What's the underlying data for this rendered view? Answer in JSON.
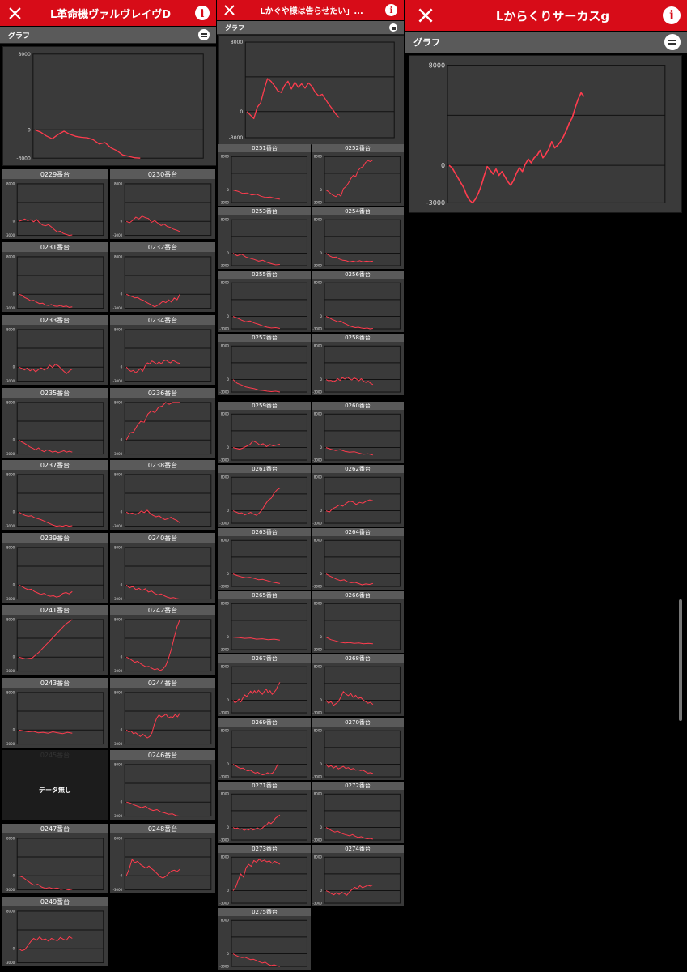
{
  "colors": {
    "header": "#d70c18",
    "line": "#ff3c4e",
    "card": "#3a3a3a",
    "card_head": "#5a5a5a"
  },
  "icons": {
    "close": "close-icon",
    "info": "info-icon",
    "collapse": "collapse-icon"
  },
  "y_max_label": "8000",
  "y_zero_label": "0",
  "y_min_label": "-3000",
  "nodata_label": "データ無し",
  "panels": [
    {
      "title": "L革命機ヴァルヴレイヴD",
      "graph_label": "グラフ",
      "main_series": [
        0,
        -250,
        -650,
        -950,
        -500,
        -150,
        -480,
        -690,
        -800,
        -850,
        -1050,
        -1500,
        -1350,
        -1900,
        -2200,
        -2650,
        -2800,
        -2950,
        -3100
      ],
      "cards": [
        {
          "label": "0229番台",
          "series": [
            0,
            200,
            500,
            150,
            350,
            -100,
            400,
            -300,
            -800,
            -950,
            -700,
            -1200,
            -1800,
            -2300,
            -2100,
            -2600,
            -2800,
            -3000,
            -2900
          ]
        },
        {
          "label": "0230番台",
          "series": [
            0,
            -300,
            200,
            900,
            500,
            1100,
            800,
            600,
            -200,
            150,
            -400,
            -900,
            -600,
            -1100,
            -1300,
            -1700,
            -1900,
            -2200
          ]
        },
        {
          "label": "0231番台",
          "series": [
            0,
            -200,
            -700,
            -1000,
            -1400,
            -1300,
            -1700,
            -2000,
            -1900,
            -2300,
            -2400,
            -2200,
            -2500,
            -2600,
            -2400,
            -2650,
            -2500,
            -2800,
            -2700
          ]
        },
        {
          "label": "0232番台",
          "series": [
            0,
            -300,
            -500,
            -800,
            -700,
            -1100,
            -1300,
            -1700,
            -2000,
            -2300,
            -2700,
            -2400,
            -2000,
            -1500,
            -1800,
            -1200,
            -1700,
            -800,
            -1200,
            0
          ]
        },
        {
          "label": "0233番台",
          "series": [
            0,
            -250,
            -600,
            -200,
            -800,
            -400,
            -1000,
            -500,
            -150,
            -600,
            -300,
            400,
            -100,
            600,
            300,
            -300,
            -900,
            -1400,
            -800,
            -400
          ]
        },
        {
          "label": "0234番台",
          "series": [
            0,
            -600,
            -900,
            -700,
            -1200,
            -800,
            -300,
            -900,
            200,
            900,
            700,
            1300,
            1000,
            600,
            1100,
            700,
            1300,
            1500,
            1100,
            900,
            1400,
            1200,
            900,
            800
          ]
        },
        {
          "label": "0235番台",
          "series": [
            0,
            -400,
            -700,
            -1100,
            -1500,
            -1800,
            -2100,
            -1700,
            -2200,
            -2500,
            -2100,
            -2300,
            -2600,
            -2400,
            -2700,
            -2500,
            -2300,
            -2600,
            -2400,
            -2600
          ]
        },
        {
          "label": "0236番台",
          "series": [
            0,
            1500,
            1700,
            3000,
            4000,
            3800,
            5500,
            6200,
            5800,
            7000,
            7200,
            8000,
            7600,
            8200,
            8000,
            8000
          ]
        },
        {
          "label": "0237番台",
          "series": [
            0,
            -400,
            -700,
            -900,
            -800,
            -1200,
            -1400,
            -1600,
            -1900,
            -2200,
            -2500,
            -2800,
            -3000,
            -2900,
            -3000,
            -2800,
            -3000,
            -2900
          ]
        },
        {
          "label": "0238番台",
          "series": [
            0,
            -400,
            -200,
            -500,
            -300,
            200,
            -100,
            400,
            -300,
            -700,
            -1000,
            -800,
            -1300,
            -1600,
            -1400,
            -1100,
            -1500,
            -1800,
            -2300
          ]
        },
        {
          "label": "0239番台",
          "series": [
            0,
            -300,
            -700,
            -1000,
            -900,
            -1400,
            -1700,
            -2000,
            -1800,
            -2200,
            -2400,
            -2300,
            -2600,
            -2400,
            -1800,
            -1600,
            -1900,
            -1400
          ]
        },
        {
          "label": "0240番台",
          "series": [
            0,
            -600,
            -300,
            -1000,
            -700,
            -1200,
            -800,
            -1500,
            -1300,
            -1800,
            -2100,
            -1900,
            -2300,
            -2600,
            -2800,
            -2700,
            -2900,
            -3000
          ]
        },
        {
          "label": "0241番台",
          "series": [
            0,
            -400,
            -200,
            1000,
            2500,
            4000,
            5500,
            7000,
            8000
          ]
        },
        {
          "label": "0242番台",
          "series": [
            0,
            -300,
            -700,
            -1100,
            -900,
            -1400,
            -1800,
            -2100,
            -2000,
            -2400,
            -2700,
            -2500,
            -2900,
            -2600,
            -1800,
            -200,
            1800,
            4200,
            6500,
            8000
          ]
        },
        {
          "label": "0243番台",
          "series": [
            0,
            -200,
            -400,
            -300,
            -600,
            -500,
            -700,
            -400,
            -600,
            -800,
            -500,
            -700
          ]
        },
        {
          "label": "0244番台",
          "series": [
            0,
            -400,
            -200,
            -800,
            -600,
            -1000,
            -1400,
            -900,
            -1300,
            -1700,
            -1400,
            -600,
            1200,
            2500,
            3200,
            2800,
            3000,
            3400,
            2600,
            2800,
            2700,
            3300,
            2800,
            3600
          ]
        },
        {
          "label": "0245番台",
          "series": [],
          "nodata": true
        },
        {
          "label": "0246番台",
          "series": [
            0,
            -200,
            -600,
            -900,
            -1200,
            -900,
            -1500,
            -1800,
            -1600,
            -2100,
            -2300,
            -2600,
            -2500,
            -2900,
            -3000
          ]
        },
        {
          "label": "0247番台",
          "series": [
            0,
            -300,
            -900,
            -1500,
            -2000,
            -1800,
            -2400,
            -2700,
            -2500,
            -2800,
            -2600,
            -2900,
            -2800,
            -3000,
            -2850
          ]
        },
        {
          "label": "0248番台",
          "series": [
            0,
            1500,
            3500,
            2800,
            3100,
            2400,
            2000,
            1600,
            2100,
            1500,
            1000,
            400,
            -200,
            -500,
            -100,
            500,
            1000,
            1200,
            900,
            1400
          ]
        },
        {
          "label": "0249番台",
          "series": [
            0,
            -400,
            -200,
            600,
            1500,
            2200,
            1800,
            2500,
            1900,
            2100,
            1600,
            2200,
            1900,
            1700,
            2400,
            2000,
            1800,
            2600,
            2200
          ]
        }
      ]
    },
    {
      "title": "Lかぐや様は告らせたい」...",
      "graph_label": "グラフ",
      "main_series": [
        0,
        -400,
        -800,
        500,
        1000,
        2500,
        3800,
        3500,
        3000,
        2400,
        2200,
        3000,
        3500,
        2600,
        3400,
        2800,
        3200,
        2700,
        3300,
        2900,
        2200,
        1800,
        2000,
        1400,
        800,
        300,
        -300,
        -700
      ],
      "cards": [
        {
          "label": "0251番台",
          "series": [
            0,
            -300,
            -800,
            -700,
            -1200,
            -1000,
            -1500,
            -1800,
            -1700,
            -2000,
            -2200
          ]
        },
        {
          "label": "0252番台",
          "series": [
            0,
            -400,
            -900,
            -1300,
            -1600,
            -1000,
            -1500,
            300,
            800,
            1600,
            2700,
            3500,
            3200,
            4700,
            5300,
            5600,
            6600,
            7000,
            6800,
            7200
          ]
        },
        {
          "label": "0253番台",
          "series": [
            0,
            -600,
            -200,
            -900,
            -1200,
            -1500,
            -1900,
            -1700,
            -2200,
            -2500,
            -2800,
            -2700
          ]
        },
        {
          "label": "0254番台",
          "series": [
            0,
            -600,
            -1000,
            -900,
            -1400,
            -1700,
            -1800,
            -2100,
            -1900,
            -2100,
            -1800,
            -2100,
            -1900,
            -2000,
            -1900
          ]
        },
        {
          "label": "0255番台",
          "series": [
            0,
            -400,
            -900,
            -1300,
            -1100,
            -1600,
            -1900,
            -2300,
            -2600,
            -2800,
            -2700,
            -2900
          ]
        },
        {
          "label": "0256番台",
          "series": [
            0,
            -300,
            -700,
            -1000,
            -1300,
            -1100,
            -1600,
            -1900,
            -2300,
            -2500,
            -2700,
            -2600,
            -2800,
            -2900,
            -2800,
            -3000,
            -2900
          ]
        },
        {
          "label": "0257番台",
          "series": [
            0,
            -900,
            -1300,
            -1800,
            -2000,
            -2200,
            -2500,
            -2600,
            -2800,
            -2900,
            -2800,
            -3000
          ]
        },
        {
          "label": "0258番台",
          "series": [
            0,
            -300,
            -200,
            -500,
            -300,
            200,
            -200,
            500,
            100,
            600,
            200,
            -100,
            400,
            100,
            -300,
            200,
            -400,
            -700,
            -400,
            -900,
            -1200
          ]
        },
        {
          "label": "0259番台",
          "series": [
            0,
            -200,
            -400,
            -100,
            300,
            700,
            1600,
            1200,
            600,
            900,
            200,
            700,
            400,
            600,
            800
          ]
        },
        {
          "label": "0260番台",
          "series": [
            0,
            -400,
            -700,
            -500,
            -900,
            -1100,
            -1000,
            -1300,
            -1600,
            -1500,
            -1800
          ]
        },
        {
          "label": "0261番台",
          "series": [
            0,
            -300,
            -600,
            -500,
            -1000,
            -700,
            -400,
            -800,
            -1100,
            -500,
            300,
            1500,
            2500,
            3000,
            4200,
            5000,
            5400
          ]
        },
        {
          "label": "0262番台",
          "series": [
            0,
            -300,
            500,
            900,
            1400,
            1100,
            1800,
            2300,
            2100,
            1500,
            2000,
            1800,
            2300,
            2600,
            2400
          ]
        },
        {
          "label": "0263番台",
          "series": [
            0,
            -400,
            -700,
            -900,
            -800,
            -1100,
            -1400,
            -1300,
            -1600,
            -1900,
            -2100,
            -2300
          ]
        },
        {
          "label": "0264番台",
          "series": [
            0,
            -500,
            -900,
            -1300,
            -1600,
            -1400,
            -1900,
            -2100,
            -2000,
            -2300,
            -2600,
            -2400,
            -2500,
            -2300
          ]
        },
        {
          "label": "0265番台",
          "series": [
            0,
            -100,
            -300,
            -200,
            -500,
            -400,
            -600,
            -500,
            -700
          ]
        },
        {
          "label": "0266番台",
          "series": [
            0,
            -600,
            -900,
            -1200,
            -1400,
            -1300,
            -1500,
            -1400,
            -1600,
            -1500,
            -1600
          ]
        },
        {
          "label": "0267番台",
          "series": [
            0,
            -600,
            -300,
            300,
            -400,
            500,
            1300,
            900,
            1500,
            2200,
            1600,
            2300,
            1700,
            2400,
            1900,
            1400,
            2100,
            2700,
            1800,
            2300,
            1400,
            1900,
            2500,
            3500,
            4300
          ]
        },
        {
          "label": "0268番台",
          "series": [
            0,
            -700,
            -300,
            -1200,
            -800,
            -300,
            800,
            2100,
            1500,
            1100,
            1600,
            700,
            1200,
            400,
            700,
            100,
            -300,
            -700,
            -500,
            -1000
          ]
        },
        {
          "label": "0269番台",
          "series": [
            0,
            -300,
            -700,
            -1000,
            -900,
            -1300,
            -1600,
            -1400,
            -1800,
            -2100,
            -1900,
            -2300,
            -2500,
            -2400,
            -2000,
            -2300,
            -2100,
            -1300,
            -100,
            -200
          ]
        },
        {
          "label": "0270番台",
          "series": [
            0,
            -700,
            -300,
            -900,
            -500,
            -1100,
            -800,
            -500,
            -1000,
            -800,
            -1200,
            -1000,
            -1400,
            -1300,
            -1500,
            -1400,
            -1800,
            -2100,
            -2000,
            -2200
          ]
        },
        {
          "label": "0271番台",
          "series": [
            0,
            -300,
            -100,
            -500,
            -300,
            -700,
            -400,
            -600,
            -200,
            -600,
            -400,
            -100,
            -500,
            -200,
            300,
            600,
            1300,
            900,
            1400,
            2200,
            2600,
            3000
          ]
        },
        {
          "label": "0272番台",
          "series": [
            0,
            -400,
            -800,
            -1100,
            -900,
            -1300,
            -1600,
            -1800,
            -2000,
            -1700,
            -2100,
            -2400,
            -2200,
            -2500,
            -2700,
            -2600,
            -2800
          ]
        },
        {
          "label": "0273番台",
          "series": [
            0,
            800,
            2500,
            4000,
            3200,
            5500,
            6300,
            5800,
            7200,
            6800,
            7500,
            7000,
            7300,
            6900,
            7100,
            6500,
            7000,
            6700,
            6300
          ]
        },
        {
          "label": "0274番台",
          "series": [
            0,
            -300,
            -700,
            -1000,
            -500,
            -900,
            -400,
            -700,
            -1100,
            -300,
            300,
            800,
            500,
            1200,
            700,
            1000,
            1300,
            1100,
            1400
          ]
        },
        {
          "label": "0275番台",
          "series": [
            0,
            -400,
            -700,
            -900,
            -800,
            -1100,
            -1400,
            -1300,
            -1600,
            -1900,
            -2200,
            -2000,
            -2500,
            -2800,
            -2600,
            -2900,
            -3000
          ]
        }
      ]
    },
    {
      "title": "Lからくりサーカスg",
      "graph_label": "グラフ",
      "main_series": [
        0,
        -200,
        -600,
        -1000,
        -1400,
        -1800,
        -2400,
        -2800,
        -3000,
        -2700,
        -2200,
        -1600,
        -800,
        -100,
        -400,
        -700,
        -300,
        -800,
        -500,
        -900,
        -1300,
        -1600,
        -1200,
        -600,
        -200,
        -500,
        100,
        500,
        200,
        600,
        800,
        1200,
        600,
        900,
        1300,
        1900,
        1400,
        1600,
        1900,
        2300,
        2800,
        3400,
        3800,
        4600,
        5300,
        5800,
        5500
      ]
    }
  ]
}
